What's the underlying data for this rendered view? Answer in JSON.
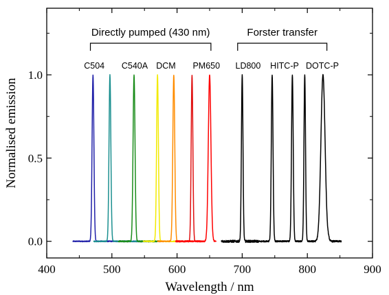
{
  "chart_data": {
    "type": "line",
    "xlabel": "Wavelength / nm",
    "ylabel": "Normalised emission",
    "xlim": [
      400,
      900
    ],
    "ylim": [
      -0.1,
      1.4
    ],
    "x_ticks": [
      {
        "value": 400,
        "label": "400"
      },
      {
        "value": 500,
        "label": "500"
      },
      {
        "value": 600,
        "label": "600"
      },
      {
        "value": 700,
        "label": "700"
      },
      {
        "value": 800,
        "label": "800"
      },
      {
        "value": 900,
        "label": "900"
      }
    ],
    "y_ticks": [
      {
        "value": 0.0,
        "label": "0.0"
      },
      {
        "value": 0.5,
        "label": "0.5"
      },
      {
        "value": 1.0,
        "label": "1.0"
      }
    ],
    "groups": [
      {
        "label": "Directly pumped (430 nm)",
        "x_start": 467,
        "x_end": 652
      },
      {
        "label": "Forster transfer",
        "x_start": 693,
        "x_end": 830
      }
    ],
    "dye_labels": [
      {
        "text": "C504",
        "x": 473
      },
      {
        "text": "C540A",
        "x": 535
      },
      {
        "text": "DCM",
        "x": 583
      },
      {
        "text": "PM650",
        "x": 645
      },
      {
        "text": "LD800",
        "x": 709
      },
      {
        "text": "HITC-P",
        "x": 765
      },
      {
        "text": "DOTC-P",
        "x": 823
      }
    ],
    "series": [
      {
        "color": "#1f1fa8",
        "peak": 471,
        "width": 1.4,
        "x_from": 440,
        "x_to": 560,
        "amplitude": 1.0,
        "noise": 0.003
      },
      {
        "color": "#1a8f8f",
        "peak": 497,
        "width": 1.4,
        "x_from": 472,
        "x_to": 560,
        "amplitude": 1.0,
        "noise": 0.003
      },
      {
        "color": "#1a8c1a",
        "peak": 534,
        "width": 1.5,
        "x_from": 510,
        "x_to": 575,
        "amplitude": 1.0,
        "noise": 0.004
      },
      {
        "color": "#f2ea00",
        "peak": 570,
        "width": 1.4,
        "x_from": 548,
        "x_to": 608,
        "amplitude": 1.0,
        "noise": 0.003
      },
      {
        "color": "#ff8c00",
        "peak": 595,
        "width": 1.5,
        "x_from": 570,
        "x_to": 625,
        "amplitude": 1.0,
        "noise": 0.003
      },
      {
        "color": "#e01010",
        "peak": 623,
        "width": 1.3,
        "x_from": 598,
        "x_to": 640,
        "amplitude": 1.0,
        "noise": 0.003
      },
      {
        "color": "#ff0000",
        "peak": 650,
        "width": 2.0,
        "x_from": 598,
        "x_to": 660,
        "amplitude": 1.0,
        "noise": 0.004
      },
      {
        "color": "#000000",
        "peak": 700,
        "width": 1.2,
        "x_from": 668,
        "x_to": 725,
        "amplitude": 1.0,
        "noise": 0.007
      },
      {
        "color": "#000000",
        "peak": 746,
        "width": 1.3,
        "x_from": 720,
        "x_to": 765,
        "amplitude": 1.0,
        "noise": 0.004
      },
      {
        "color": "#000000",
        "peak": 777,
        "width": 1.3,
        "x_from": 760,
        "x_to": 790,
        "amplitude": 1.0,
        "noise": 0.004
      },
      {
        "color": "#000000",
        "peak": 796,
        "width": 1.2,
        "x_from": 785,
        "x_to": 808,
        "amplitude": 1.0,
        "noise": 0.004
      },
      {
        "color": "#000000",
        "peak": 824,
        "width": 3.2,
        "x_from": 805,
        "x_to": 852,
        "amplitude": 1.0,
        "noise": 0.005,
        "shoulder": 0.33
      }
    ]
  }
}
